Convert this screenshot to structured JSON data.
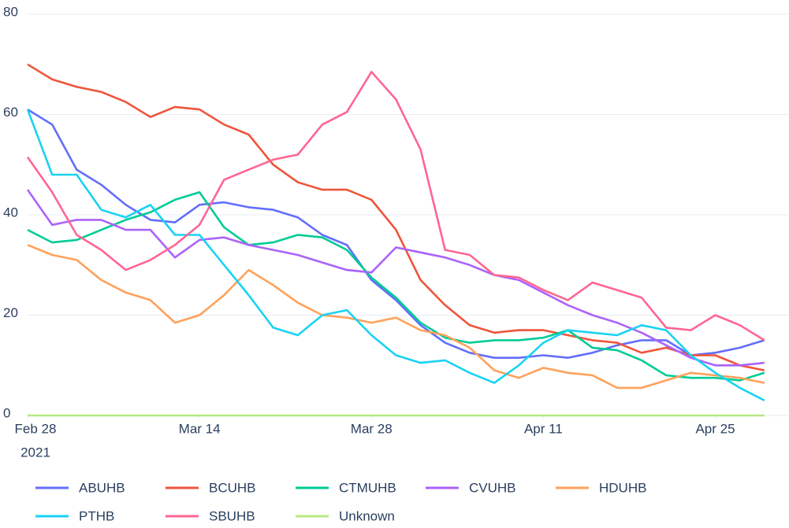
{
  "chart_data": {
    "type": "line",
    "x": [
      "2021-02-28",
      "2021-03-02",
      "2021-03-04",
      "2021-03-06",
      "2021-03-08",
      "2021-03-10",
      "2021-03-12",
      "2021-03-14",
      "2021-03-16",
      "2021-03-18",
      "2021-03-20",
      "2021-03-22",
      "2021-03-24",
      "2021-03-26",
      "2021-03-28",
      "2021-03-30",
      "2021-04-01",
      "2021-04-03",
      "2021-04-05",
      "2021-04-07",
      "2021-04-09",
      "2021-04-11",
      "2021-04-13",
      "2021-04-15",
      "2021-04-17",
      "2021-04-19",
      "2021-04-21",
      "2021-04-23",
      "2021-04-25",
      "2021-04-27",
      "2021-04-29"
    ],
    "xlim": [
      "2021-02-28",
      "2021-05-01"
    ],
    "xticks": [
      {
        "value": "2021-02-28",
        "label": "Feb 28",
        "year": "2021"
      },
      {
        "value": "2021-03-14",
        "label": "Mar 14"
      },
      {
        "value": "2021-03-28",
        "label": "Mar 28"
      },
      {
        "value": "2021-04-11",
        "label": "Apr 11"
      },
      {
        "value": "2021-04-25",
        "label": "Apr 25"
      }
    ],
    "ylim": [
      0,
      80
    ],
    "yticks": [
      0,
      20,
      40,
      60,
      80
    ],
    "grid": true,
    "series": [
      {
        "name": "ABUHB",
        "color": "#636efa",
        "values": [
          61,
          58,
          49,
          46,
          42,
          39,
          38.5,
          42,
          42.5,
          41.5,
          41,
          39.5,
          36,
          34,
          27,
          23,
          18,
          14.5,
          12.5,
          11.5,
          11.5,
          12,
          11.5,
          12.5,
          14,
          15,
          15,
          12,
          12.5,
          13.5,
          15
        ]
      },
      {
        "name": "BCUHB",
        "color": "#ef553b",
        "values": [
          70,
          67,
          65.5,
          64.5,
          62.5,
          59.5,
          61.5,
          61,
          58,
          56,
          50,
          46.5,
          45,
          45,
          43,
          37,
          27,
          22,
          18,
          16.5,
          17,
          17,
          16,
          15,
          14.5,
          12.5,
          13.5,
          12,
          12,
          10,
          9
        ]
      },
      {
        "name": "CTMUHB",
        "color": "#00cc96",
        "values": [
          37,
          34.5,
          35,
          37,
          39,
          40.5,
          43,
          44.5,
          37.5,
          34,
          34.5,
          36,
          35.5,
          33,
          27.5,
          23.5,
          18.5,
          15.5,
          14.5,
          15,
          15,
          15.5,
          17,
          13.5,
          13,
          11,
          8,
          7.5,
          7.5,
          7,
          8.5
        ]
      },
      {
        "name": "CVUHB",
        "color": "#ab63fa",
        "values": [
          45,
          38,
          39,
          39,
          37,
          37,
          31.5,
          35,
          35.5,
          34,
          33,
          32,
          30.5,
          29,
          28.5,
          33.5,
          32.5,
          31.5,
          30,
          28,
          27,
          24.5,
          22,
          20,
          18.5,
          16.5,
          14,
          11.5,
          10,
          10,
          10.5
        ]
      },
      {
        "name": "HDUHB",
        "color": "#ffa15a",
        "values": [
          34,
          32,
          31,
          27,
          24.5,
          23,
          18.5,
          20,
          24,
          29,
          26,
          22.5,
          20,
          19.5,
          18.5,
          19.5,
          17,
          16,
          13.5,
          9,
          7.5,
          9.5,
          8.5,
          8,
          5.5,
          5.5,
          7,
          8.5,
          8,
          7.5,
          6.5
        ]
      },
      {
        "name": "PTHB",
        "color": "#19d3f3",
        "values": [
          61,
          48,
          48,
          41,
          39.5,
          42,
          36,
          36,
          30,
          24,
          17.5,
          16,
          20,
          21,
          16,
          12,
          10.5,
          11,
          8.5,
          6.5,
          10,
          14.5,
          17,
          16.5,
          16,
          18,
          17,
          12,
          8.5,
          5.5,
          3
        ]
      },
      {
        "name": "SBUHB",
        "color": "#ff6692",
        "values": [
          51.5,
          44.5,
          36,
          33,
          29,
          31,
          34,
          38,
          47,
          49,
          51,
          52,
          58,
          60.5,
          68.5,
          63,
          53,
          33,
          32,
          28,
          27.5,
          25,
          23,
          26.5,
          25,
          23.5,
          17.5,
          17,
          20,
          18,
          15
        ]
      },
      {
        "name": "Unknown",
        "color": "#b6e880",
        "values": [
          0,
          0,
          0,
          0,
          0,
          0,
          0,
          0,
          0,
          0,
          0,
          0,
          0,
          0,
          0,
          0,
          0,
          0,
          0,
          0,
          0,
          0,
          0,
          0,
          0,
          0,
          0,
          0,
          0,
          0,
          0
        ]
      }
    ]
  }
}
